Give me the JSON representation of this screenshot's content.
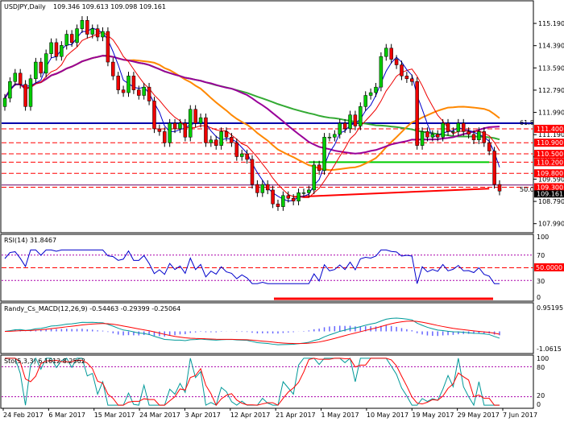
{
  "symbol_line": {
    "symbol": "USDJPY,Daily",
    "ohlc": "109.346 109.613 109.098 109.161"
  },
  "colors": {
    "bull": "#00cc00",
    "bear": "#ee0000",
    "ma_green": "#33aa33",
    "ma_orange": "#ff8800",
    "ma_purple": "#990099",
    "ma_red": "#ee0000",
    "ma_blue": "#0000cc",
    "level_red": "#ff0000",
    "fib_blue": "#0000aa",
    "price_box_red": "#ff0000"
  },
  "main_panel": {
    "yticks": [
      "115.190",
      "114.390",
      "113.590",
      "112.790",
      "111.990",
      "111.190",
      "110.390",
      "109.590",
      "108.790",
      "107.990"
    ],
    "ytick_values": [
      115.19,
      114.39,
      113.59,
      112.79,
      111.99,
      111.19,
      110.39,
      109.59,
      108.79,
      107.99
    ],
    "ylim": [
      107.75,
      115.8
    ],
    "fib_labels": {
      "upper": "61.8",
      "lower": "50.0"
    },
    "levels": [
      {
        "label": "111.400",
        "value": 111.4
      },
      {
        "label": "110.900",
        "value": 110.9
      },
      {
        "label": "110.500",
        "value": 110.5
      },
      {
        "label": "110.200",
        "value": 110.2
      },
      {
        "label": "109.800",
        "value": 109.8
      },
      {
        "label": "109.300",
        "value": 109.3
      }
    ],
    "current_price": "109.161",
    "fib_values": [
      111.6,
      109.38
    ]
  },
  "rsi_panel": {
    "title": "RSI(14) 31.8467",
    "ticks": [
      "100",
      "70",
      "50.0000",
      "30",
      "0"
    ]
  },
  "macd_panel": {
    "title": "Randy_Cs_MACD(12,26,9) -0.54463 -0.29399 -0.25064",
    "ticks": [
      "0.95195",
      "-1.0615"
    ]
  },
  "sto_panel": {
    "title": "Sto(5,3,3) 6.1612 8.2562",
    "ticks": [
      "100",
      "80",
      "20",
      "0"
    ]
  },
  "x_labels": [
    "24 Feb 2017",
    "6 Mar 2017",
    "15 Mar 2017",
    "24 Mar 2017",
    "3 Apr 2017",
    "12 Apr 2017",
    "21 Apr 2017",
    "1 May 2017",
    "10 May 2017",
    "19 May 2017",
    "29 May 2017",
    "7 Jun 2017"
  ],
  "chart_data": {
    "type": "candlestick",
    "title": "USDJPY,Daily",
    "series": [
      {
        "name": "USDJPY",
        "open": [
          112.2,
          112.5,
          113.1,
          113.4,
          113.0,
          112.2,
          113.2,
          113.8,
          113.4,
          114.1,
          114.5,
          114.0,
          114.4,
          114.8,
          114.5,
          115.0,
          115.3,
          114.8,
          115.0,
          114.7,
          114.9,
          113.8,
          113.3,
          112.8,
          112.7,
          113.3,
          112.8,
          112.6,
          112.9,
          112.4,
          111.4,
          111.3,
          110.9,
          111.6,
          111.4,
          111.6,
          111.1,
          112.1,
          111.6,
          111.8,
          110.9,
          111.0,
          110.8,
          111.3,
          111.1,
          110.9,
          110.4,
          110.5,
          110.3,
          109.4,
          109.1,
          109.4,
          109.2,
          108.7,
          108.6,
          109.0,
          108.9,
          108.8,
          109.1,
          109.1,
          109.2,
          110.1,
          109.9,
          111.1,
          111.1,
          111.2,
          111.6,
          111.4,
          111.9,
          111.5,
          112.2,
          112.6,
          112.7,
          112.9,
          114.0,
          114.3,
          113.9,
          113.7,
          113.3,
          113.2,
          113.1,
          110.8,
          111.3,
          111.1,
          111.2,
          111.1,
          111.6,
          111.3,
          111.3,
          111.6,
          111.3,
          111.2,
          111.0,
          111.3,
          110.9,
          110.6,
          109.4
        ],
        "close": [
          112.5,
          113.1,
          113.4,
          113.0,
          112.2,
          113.2,
          113.8,
          113.4,
          114.1,
          114.5,
          114.0,
          114.4,
          114.8,
          114.5,
          115.0,
          115.3,
          114.8,
          115.0,
          114.7,
          114.9,
          113.8,
          113.3,
          112.8,
          112.7,
          113.3,
          112.8,
          112.6,
          112.9,
          112.4,
          111.4,
          111.3,
          110.9,
          111.6,
          111.4,
          111.6,
          111.1,
          112.1,
          111.6,
          111.8,
          110.9,
          111.0,
          110.8,
          111.3,
          111.1,
          110.9,
          110.4,
          110.5,
          110.3,
          109.4,
          109.1,
          109.4,
          109.2,
          108.7,
          108.6,
          109.0,
          108.9,
          108.8,
          109.1,
          109.1,
          109.2,
          110.1,
          109.9,
          111.1,
          111.1,
          111.2,
          111.6,
          111.4,
          111.9,
          111.5,
          112.2,
          112.6,
          112.7,
          112.9,
          114.0,
          114.3,
          113.9,
          113.7,
          113.3,
          113.2,
          113.1,
          110.8,
          111.3,
          111.1,
          111.2,
          111.1,
          111.6,
          111.3,
          111.3,
          111.6,
          111.3,
          111.2,
          111.0,
          111.3,
          110.9,
          110.6,
          109.4,
          109.161
        ]
      }
    ]
  }
}
